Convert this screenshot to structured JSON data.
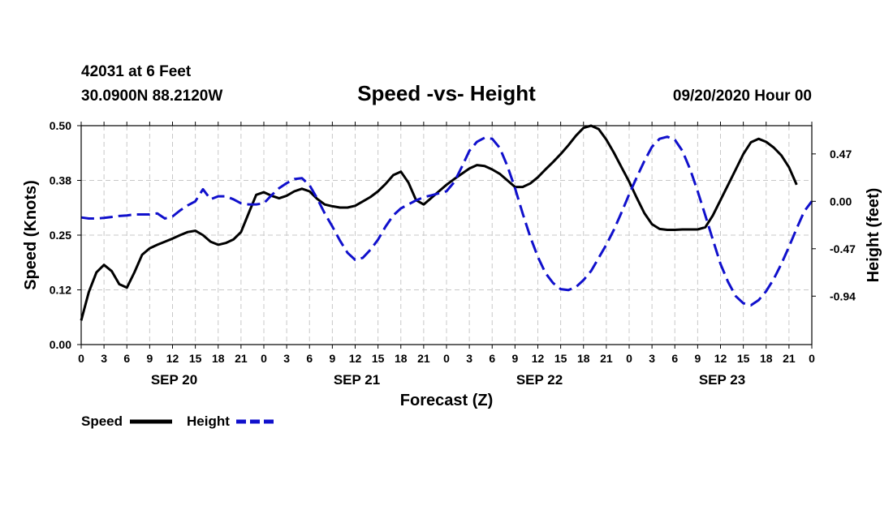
{
  "chart_data": {
    "type": "line",
    "header": {
      "station": "42031 at 6 Feet",
      "location": "30.0900N 88.2120W",
      "datetime": "09/20/2020 Hour 00"
    },
    "title": "Speed -vs- Height",
    "xlabel": "Forecast (Z)",
    "ylabel_left": "Speed (Knots)",
    "ylabel_right": "Height (feet)",
    "x_range": [
      0,
      96
    ],
    "y_left_range": [
      0,
      0.5
    ],
    "y_right_range": [
      -1.42,
      0.75
    ],
    "y_left_ticks": [
      "0.00",
      "0.12",
      "0.25",
      "0.38",
      "0.50"
    ],
    "y_left_tick_values": [
      0,
      0.125,
      0.25,
      0.375,
      0.5
    ],
    "y_right_ticks": [
      "0.47",
      "0.00",
      "-0.47",
      "-0.94"
    ],
    "y_right_tick_values": [
      0.47,
      0.0,
      -0.47,
      -0.94
    ],
    "x_tick_labels": [
      "0",
      "3",
      "6",
      "9",
      "12",
      "15",
      "18",
      "21",
      "0",
      "3",
      "6",
      "9",
      "12",
      "15",
      "18",
      "21",
      "0",
      "3",
      "6",
      "9",
      "12",
      "15",
      "18",
      "21",
      "0",
      "3",
      "6",
      "9",
      "12",
      "15",
      "18",
      "21",
      "0"
    ],
    "x_tick_values": [
      0,
      3,
      6,
      9,
      12,
      15,
      18,
      21,
      24,
      27,
      30,
      33,
      36,
      39,
      42,
      45,
      48,
      51,
      54,
      57,
      60,
      63,
      66,
      69,
      72,
      75,
      78,
      81,
      84,
      87,
      90,
      93,
      96
    ],
    "date_labels": [
      {
        "label": "SEP 20",
        "x": 12
      },
      {
        "label": "SEP 21",
        "x": 36
      },
      {
        "label": "SEP 22",
        "x": 60
      },
      {
        "label": "SEP 23",
        "x": 84
      }
    ],
    "grid": true,
    "legend_position": "bottom-left",
    "series": [
      {
        "name": "Speed",
        "axis": "left",
        "color": "#000000",
        "style": "solid",
        "points": [
          [
            0,
            0.055
          ],
          [
            1,
            0.12
          ],
          [
            2,
            0.165
          ],
          [
            3,
            0.182
          ],
          [
            4,
            0.168
          ],
          [
            5,
            0.138
          ],
          [
            6,
            0.13
          ],
          [
            7,
            0.165
          ],
          [
            8,
            0.205
          ],
          [
            9,
            0.22
          ],
          [
            10,
            0.228
          ],
          [
            11,
            0.235
          ],
          [
            12,
            0.242
          ],
          [
            13,
            0.25
          ],
          [
            14,
            0.257
          ],
          [
            15,
            0.26
          ],
          [
            16,
            0.25
          ],
          [
            17,
            0.235
          ],
          [
            18,
            0.228
          ],
          [
            19,
            0.232
          ],
          [
            20,
            0.24
          ],
          [
            21,
            0.257
          ],
          [
            22,
            0.3
          ],
          [
            23,
            0.342
          ],
          [
            24,
            0.348
          ],
          [
            25,
            0.34
          ],
          [
            26,
            0.334
          ],
          [
            27,
            0.34
          ],
          [
            28,
            0.35
          ],
          [
            29,
            0.356
          ],
          [
            30,
            0.35
          ],
          [
            31,
            0.333
          ],
          [
            32,
            0.32
          ],
          [
            33,
            0.316
          ],
          [
            34,
            0.313
          ],
          [
            35,
            0.313
          ],
          [
            36,
            0.317
          ],
          [
            37,
            0.327
          ],
          [
            38,
            0.337
          ],
          [
            39,
            0.35
          ],
          [
            40,
            0.367
          ],
          [
            41,
            0.387
          ],
          [
            42,
            0.395
          ],
          [
            43,
            0.37
          ],
          [
            44,
            0.33
          ],
          [
            45,
            0.32
          ],
          [
            46,
            0.335
          ],
          [
            47,
            0.35
          ],
          [
            48,
            0.365
          ],
          [
            49,
            0.378
          ],
          [
            50,
            0.39
          ],
          [
            51,
            0.402
          ],
          [
            52,
            0.41
          ],
          [
            53,
            0.408
          ],
          [
            54,
            0.4
          ],
          [
            55,
            0.39
          ],
          [
            56,
            0.375
          ],
          [
            57,
            0.36
          ],
          [
            58,
            0.36
          ],
          [
            59,
            0.368
          ],
          [
            60,
            0.382
          ],
          [
            61,
            0.4
          ],
          [
            62,
            0.417
          ],
          [
            63,
            0.435
          ],
          [
            64,
            0.455
          ],
          [
            65,
            0.477
          ],
          [
            66,
            0.495
          ],
          [
            67,
            0.5
          ],
          [
            68,
            0.492
          ],
          [
            69,
            0.468
          ],
          [
            70,
            0.438
          ],
          [
            71,
            0.405
          ],
          [
            72,
            0.372
          ],
          [
            73,
            0.335
          ],
          [
            74,
            0.3
          ],
          [
            75,
            0.275
          ],
          [
            76,
            0.264
          ],
          [
            77,
            0.262
          ],
          [
            78,
            0.262
          ],
          [
            79,
            0.263
          ],
          [
            80,
            0.263
          ],
          [
            81,
            0.263
          ],
          [
            82,
            0.268
          ],
          [
            83,
            0.295
          ],
          [
            84,
            0.33
          ],
          [
            85,
            0.365
          ],
          [
            86,
            0.4
          ],
          [
            87,
            0.435
          ],
          [
            88,
            0.462
          ],
          [
            89,
            0.47
          ],
          [
            90,
            0.463
          ],
          [
            91,
            0.45
          ],
          [
            92,
            0.432
          ],
          [
            93,
            0.405
          ],
          [
            94,
            0.365
          ]
        ]
      },
      {
        "name": "Height",
        "axis": "right",
        "color": "#1010cc",
        "style": "dashed",
        "points": [
          [
            0,
            -0.16
          ],
          [
            1,
            -0.17
          ],
          [
            2,
            -0.17
          ],
          [
            3,
            -0.165
          ],
          [
            4,
            -0.155
          ],
          [
            5,
            -0.145
          ],
          [
            6,
            -0.14
          ],
          [
            7,
            -0.13
          ],
          [
            8,
            -0.13
          ],
          [
            9,
            -0.13
          ],
          [
            10,
            -0.12
          ],
          [
            11,
            -0.17
          ],
          [
            12,
            -0.15
          ],
          [
            13,
            -0.09
          ],
          [
            14,
            -0.04
          ],
          [
            15,
            0.0
          ],
          [
            16,
            0.12
          ],
          [
            17,
            0.02
          ],
          [
            18,
            0.05
          ],
          [
            19,
            0.05
          ],
          [
            20,
            0.02
          ],
          [
            21,
            -0.02
          ],
          [
            22,
            -0.03
          ],
          [
            23,
            -0.03
          ],
          [
            24,
            -0.02
          ],
          [
            25,
            0.06
          ],
          [
            26,
            0.13
          ],
          [
            27,
            0.18
          ],
          [
            28,
            0.22
          ],
          [
            29,
            0.23
          ],
          [
            30,
            0.16
          ],
          [
            31,
            0.03
          ],
          [
            32,
            -0.12
          ],
          [
            33,
            -0.25
          ],
          [
            34,
            -0.39
          ],
          [
            35,
            -0.51
          ],
          [
            36,
            -0.58
          ],
          [
            37,
            -0.56
          ],
          [
            38,
            -0.48
          ],
          [
            39,
            -0.38
          ],
          [
            40,
            -0.25
          ],
          [
            41,
            -0.14
          ],
          [
            42,
            -0.07
          ],
          [
            43,
            -0.03
          ],
          [
            44,
            0.01
          ],
          [
            45,
            0.04
          ],
          [
            46,
            0.06
          ],
          [
            47,
            0.08
          ],
          [
            48,
            0.1
          ],
          [
            49,
            0.19
          ],
          [
            50,
            0.34
          ],
          [
            51,
            0.5
          ],
          [
            52,
            0.59
          ],
          [
            53,
            0.63
          ],
          [
            54,
            0.62
          ],
          [
            55,
            0.53
          ],
          [
            56,
            0.35
          ],
          [
            57,
            0.13
          ],
          [
            58,
            -0.12
          ],
          [
            59,
            -0.35
          ],
          [
            60,
            -0.55
          ],
          [
            61,
            -0.71
          ],
          [
            62,
            -0.81
          ],
          [
            63,
            -0.87
          ],
          [
            64,
            -0.88
          ],
          [
            65,
            -0.85
          ],
          [
            66,
            -0.78
          ],
          [
            67,
            -0.69
          ],
          [
            68,
            -0.56
          ],
          [
            69,
            -0.43
          ],
          [
            70,
            -0.28
          ],
          [
            71,
            -0.11
          ],
          [
            72,
            0.07
          ],
          [
            73,
            0.24
          ],
          [
            74,
            0.4
          ],
          [
            75,
            0.54
          ],
          [
            76,
            0.62
          ],
          [
            77,
            0.64
          ],
          [
            78,
            0.61
          ],
          [
            79,
            0.5
          ],
          [
            80,
            0.32
          ],
          [
            81,
            0.1
          ],
          [
            82,
            -0.14
          ],
          [
            83,
            -0.38
          ],
          [
            84,
            -0.62
          ],
          [
            85,
            -0.8
          ],
          [
            86,
            -0.94
          ],
          [
            87,
            -1.01
          ],
          [
            88,
            -1.03
          ],
          [
            89,
            -0.98
          ],
          [
            90,
            -0.89
          ],
          [
            91,
            -0.77
          ],
          [
            92,
            -0.62
          ],
          [
            93,
            -0.45
          ],
          [
            94,
            -0.27
          ],
          [
            95,
            -0.1
          ],
          [
            96,
            0.0
          ]
        ]
      }
    ]
  }
}
